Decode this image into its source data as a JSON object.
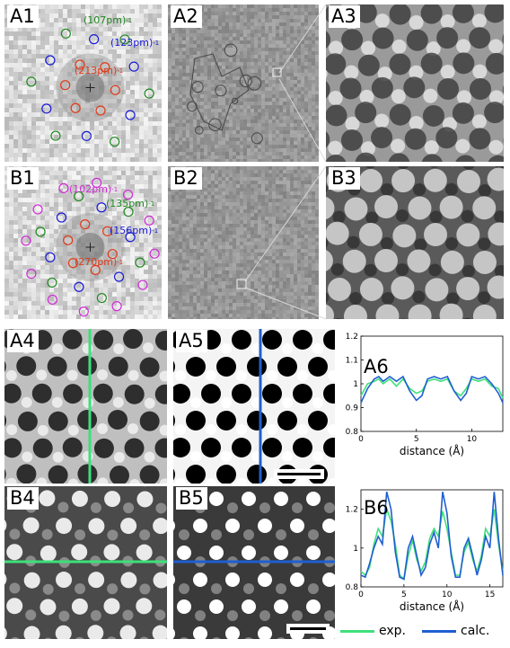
{
  "colors": {
    "exp": "#3ee07a",
    "calc": "#1f5fd0",
    "green_ring": "#1f8a1f",
    "blue_ring": "#1a1ad6",
    "red_ring": "#e03a1a",
    "magenta_ring": "#d12bd6"
  },
  "panels": {
    "A1": {
      "label": "A1",
      "rings": [
        {
          "text": "(107pm)",
          "color": "#1f8a1f"
        },
        {
          "text": "(123pm)",
          "color": "#1a1ad6"
        },
        {
          "text": "(213pm)",
          "color": "#e03a1a"
        }
      ]
    },
    "A2": {
      "label": "A2"
    },
    "A3": {
      "label": "A3"
    },
    "B1": {
      "label": "B1",
      "rings": [
        {
          "text": "(102pm)",
          "color": "#d12bd6"
        },
        {
          "text": "(135pm)",
          "color": "#1f8a1f"
        },
        {
          "text": "(156pm)",
          "color": "#1a1ad6"
        },
        {
          "text": "(270pm)",
          "color": "#e03a1a"
        }
      ]
    },
    "B2": {
      "label": "B2"
    },
    "B3": {
      "label": "B3"
    },
    "A4": {
      "label": "A4"
    },
    "A5": {
      "label": "A5"
    },
    "A6": {
      "label": "A6"
    },
    "B4": {
      "label": "B4"
    },
    "B5": {
      "label": "B5"
    },
    "B6": {
      "label": "B6"
    }
  },
  "inverse_exponent": "-1",
  "chart_data": [
    {
      "type": "line",
      "panel": "A6",
      "xlabel": "distance (Å)",
      "ylabel": "",
      "xlim": [
        0,
        12.8
      ],
      "ylim": [
        0.8,
        1.2
      ],
      "xticks": [
        0,
        5,
        10
      ],
      "yticks": [
        0.8,
        0.9,
        1,
        1.1,
        1.2
      ],
      "series": [
        {
          "name": "exp.",
          "color": "#3ee07a",
          "x": [
            0,
            0.6,
            1.2,
            1.6,
            2.0,
            2.6,
            3.2,
            3.8,
            4.4,
            5.0,
            5.5,
            6.0,
            6.6,
            7.2,
            7.8,
            8.4,
            9.0,
            9.5,
            10.0,
            10.6,
            11.2,
            11.8,
            12.4,
            12.8
          ],
          "y": [
            0.95,
            1.0,
            1.01,
            1.02,
            1.0,
            1.02,
            0.99,
            1.02,
            0.98,
            0.96,
            0.97,
            1.01,
            1.02,
            1.01,
            1.02,
            0.97,
            0.95,
            0.98,
            1.02,
            1.01,
            1.02,
            0.99,
            0.98,
            0.94
          ]
        },
        {
          "name": "calc.",
          "color": "#1f5fd0",
          "x": [
            0,
            0.6,
            1.2,
            1.6,
            2.0,
            2.6,
            3.2,
            3.8,
            4.4,
            5.0,
            5.5,
            6.0,
            6.6,
            7.2,
            7.8,
            8.4,
            9.0,
            9.5,
            10.0,
            10.6,
            11.2,
            11.8,
            12.4,
            12.8
          ],
          "y": [
            0.92,
            0.98,
            1.02,
            1.03,
            1.01,
            1.03,
            1.01,
            1.03,
            0.97,
            0.93,
            0.95,
            1.02,
            1.03,
            1.02,
            1.03,
            0.97,
            0.93,
            0.96,
            1.03,
            1.02,
            1.03,
            1.0,
            0.96,
            0.92
          ]
        }
      ]
    },
    {
      "type": "line",
      "panel": "B6",
      "xlabel": "distance (Å)",
      "ylabel": "",
      "xlim": [
        0,
        16.5
      ],
      "ylim": [
        0.8,
        1.3
      ],
      "xticks": [
        0,
        5,
        10,
        15
      ],
      "yticks": [
        0.8,
        1,
        1.2
      ],
      "series": [
        {
          "name": "exp.",
          "color": "#3ee07a",
          "x": [
            0,
            0.5,
            1.0,
            1.5,
            2.0,
            2.5,
            3.0,
            3.5,
            4.0,
            4.5,
            5.0,
            5.5,
            6.0,
            6.5,
            7.0,
            7.5,
            8.0,
            8.5,
            9.0,
            9.5,
            10.0,
            10.5,
            11.0,
            11.5,
            12.0,
            12.5,
            13.0,
            13.5,
            14.0,
            14.5,
            15.0,
            15.5,
            16.0,
            16.5
          ],
          "y": [
            0.88,
            0.86,
            0.9,
            1.02,
            1.1,
            1.06,
            1.2,
            1.14,
            1.02,
            0.86,
            0.84,
            0.96,
            1.04,
            0.94,
            0.88,
            0.93,
            1.05,
            1.1,
            1.06,
            1.19,
            1.1,
            0.98,
            0.86,
            0.86,
            0.98,
            1.03,
            0.94,
            0.88,
            0.96,
            1.1,
            1.06,
            1.2,
            1.02,
            0.88
          ]
        },
        {
          "name": "calc.",
          "color": "#1f5fd0",
          "x": [
            0,
            0.5,
            1.0,
            1.5,
            2.0,
            2.5,
            3.0,
            3.5,
            4.0,
            4.5,
            5.0,
            5.5,
            6.0,
            6.5,
            7.0,
            7.5,
            8.0,
            8.5,
            9.0,
            9.5,
            10.0,
            10.5,
            11.0,
            11.5,
            12.0,
            12.5,
            13.0,
            13.5,
            14.0,
            14.5,
            15.0,
            15.5,
            16.0,
            16.5
          ],
          "y": [
            0.86,
            0.85,
            0.92,
            1.0,
            1.06,
            1.02,
            1.29,
            1.2,
            0.98,
            0.85,
            0.84,
            1.0,
            1.06,
            0.96,
            0.86,
            0.9,
            1.02,
            1.08,
            1.0,
            1.29,
            1.18,
            0.96,
            0.85,
            0.85,
            1.0,
            1.05,
            0.96,
            0.86,
            0.94,
            1.06,
            1.0,
            1.29,
            1.05,
            0.86
          ]
        }
      ]
    }
  ],
  "legend": [
    {
      "label": "exp.",
      "color": "#3ee07a"
    },
    {
      "label": "calc.",
      "color": "#1f5fd0"
    }
  ]
}
